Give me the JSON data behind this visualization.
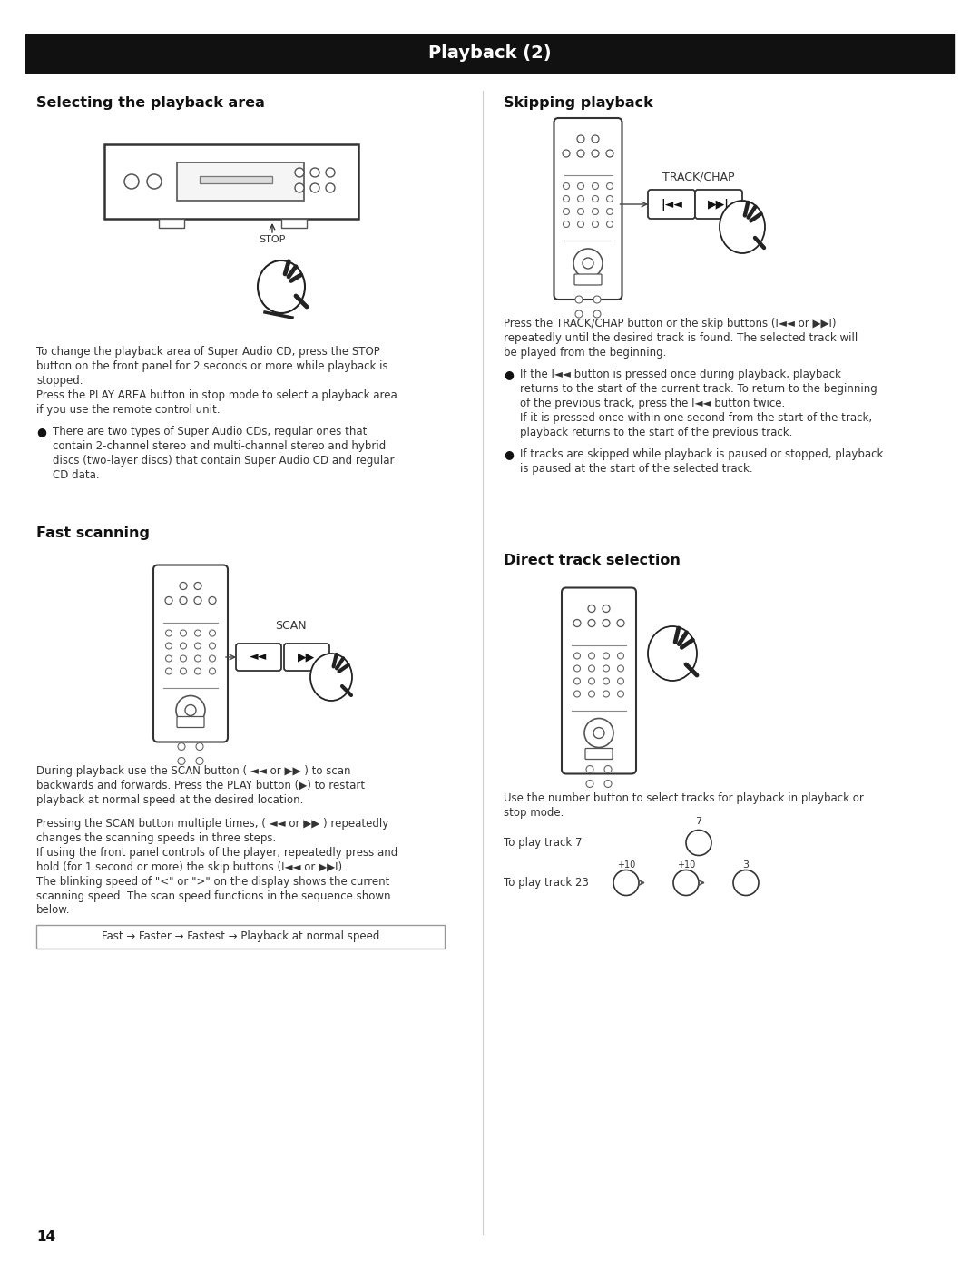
{
  "title": "Playback (2)",
  "title_bg": "#111111",
  "title_color": "#ffffff",
  "page_bg": "#ffffff",
  "page_number": "14",
  "section1_title": "Selecting the playback area",
  "section2_title": "Fast scanning",
  "section3_title": "Skipping playback",
  "section4_title": "Direct track selection",
  "s1_text1a": "To change the playback area of Super Audio CD, press the STOP",
  "s1_text1b": "button on the front panel for 2 seconds or more while playback is",
  "s1_text1c": "stopped.",
  "s1_text1d": "Press the PLAY AREA button in stop mode to select a playback area",
  "s1_text1e": "if you use the remote control unit.",
  "s1_bullet": "There are two types of Super Audio CDs, regular ones that contain 2-channel stereo and multi-channel stereo and hybrid discs (two-layer discs) that contain Super Audio CD and regular CD data.",
  "s2_text1a": "During playback use the SCAN button (◄◄ or ►►) to scan backwards and forwards. Press the PLAY button (►) to restart playback at normal speed at the desired location.",
  "s2_text2a": "Pressing the SCAN button multiple times, (◄◄ or ►►) repeatedly changes the scanning speeds in three steps.",
  "s2_text2b": "If using the front panel controls of the player, repeatedly press and hold (for 1 second or more) the skip buttons (I◄◄ or ►►I).",
  "s2_text2c": "The blinking speed of \"<\" or \">\" on the display shows the current scanning speed. The scan speed functions in the sequence shown below.",
  "s2_sequence": "Fast → Faster → Fastest → Playback at normal speed",
  "s3_text": "Press the TRACK/CHAP button or the skip buttons (I◄◄ or ►►I) repeatedly until the desired track is found. The selected track will be played from the beginning.",
  "s3_b1a": "If the I◄◄ button is pressed once during playback, playback returns to the start of the current track. To return to the beginning of the previous track, press the I◄◄ button twice.",
  "s3_b1b": "If it is pressed once within one second from the start of the track, playback returns to the start of the previous track.",
  "s3_b2": "If tracks are skipped while playback is paused or stopped, playback is paused at the start of the selected track.",
  "s4_text": "Use the number button to select tracks for playback in playback or stop mode.",
  "s4_track7_label": "To play track 7",
  "s4_track23_label": "To play track 23"
}
